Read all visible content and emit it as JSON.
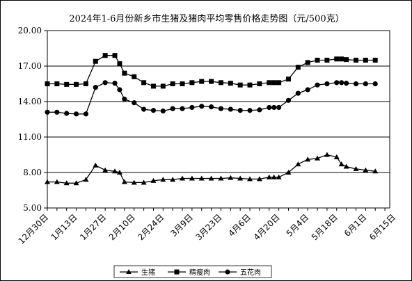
{
  "chart_data": {
    "type": "line",
    "title": "2024年1-6月份新乡市生猪及猪肉平均零售价格走势图（元/500克）",
    "ylim": [
      5.0,
      20.0
    ],
    "yticks": [
      "5.00",
      "8.00",
      "11.00",
      "14.00",
      "17.00",
      "20.00"
    ],
    "x_ticks": [
      "12月30日",
      "1月13日",
      "1月27日",
      "2月10日",
      "2月24日",
      "3月9日",
      "3月23日",
      "4月6日",
      "4月20日",
      "5月4日",
      "5月18日",
      "6月1日",
      "6月15日"
    ],
    "grid": true,
    "legend_position": "bottom",
    "x": [
      0,
      1,
      2,
      3,
      4,
      5,
      6,
      7,
      7.5,
      8,
      9,
      10,
      11,
      12,
      13,
      14,
      15,
      16,
      17,
      18,
      19,
      20,
      21,
      22,
      23,
      23.5,
      24,
      25,
      26,
      27,
      28,
      29,
      30,
      30.5,
      31,
      32,
      33,
      34
    ],
    "series": [
      {
        "name": "生猪",
        "marker": "triangle",
        "values": [
          7.2,
          7.2,
          7.1,
          7.1,
          7.4,
          8.6,
          8.2,
          8.1,
          8.0,
          7.2,
          7.15,
          7.15,
          7.3,
          7.4,
          7.4,
          7.5,
          7.5,
          7.5,
          7.5,
          7.5,
          7.55,
          7.5,
          7.45,
          7.45,
          7.6,
          7.6,
          7.6,
          8.0,
          8.7,
          9.1,
          9.2,
          9.5,
          9.3,
          8.7,
          8.5,
          8.3,
          8.2,
          8.1
        ]
      },
      {
        "name": "精瘦肉",
        "marker": "square",
        "values": [
          15.5,
          15.5,
          15.45,
          15.45,
          15.5,
          17.4,
          17.9,
          17.9,
          17.2,
          16.4,
          16.1,
          15.6,
          15.3,
          15.3,
          15.5,
          15.5,
          15.6,
          15.7,
          15.7,
          15.6,
          15.55,
          15.4,
          15.4,
          15.5,
          15.6,
          15.6,
          15.6,
          15.9,
          16.9,
          17.3,
          17.5,
          17.5,
          17.6,
          17.6,
          17.55,
          17.5,
          17.5,
          17.5
        ]
      },
      {
        "name": "五花肉",
        "marker": "circle",
        "values": [
          13.1,
          13.1,
          13.0,
          12.95,
          12.95,
          15.2,
          15.6,
          15.55,
          15.0,
          14.2,
          13.9,
          13.35,
          13.25,
          13.2,
          13.4,
          13.4,
          13.5,
          13.6,
          13.55,
          13.4,
          13.35,
          13.25,
          13.25,
          13.3,
          13.5,
          13.5,
          13.5,
          14.1,
          14.7,
          15.0,
          15.4,
          15.5,
          15.6,
          15.6,
          15.55,
          15.5,
          15.5,
          15.5
        ]
      }
    ]
  }
}
